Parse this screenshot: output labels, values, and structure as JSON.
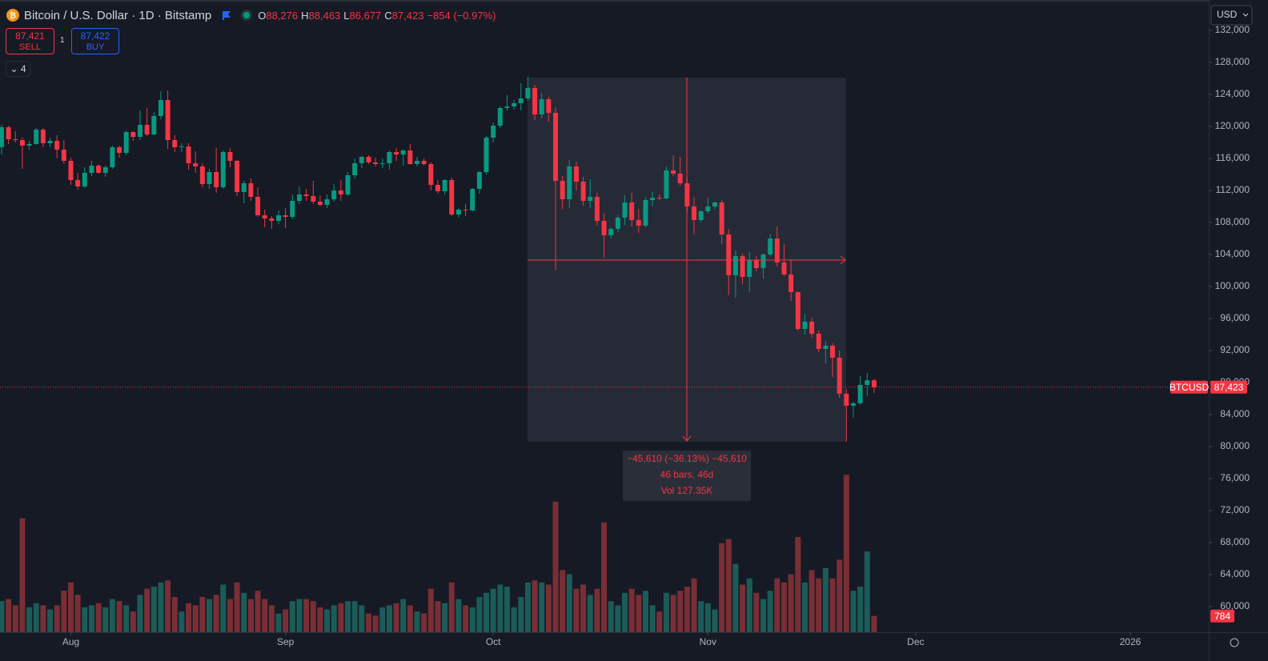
{
  "header": {
    "title": "Bitcoin / U.S. Dollar · 1D · Bitstamp",
    "ohlc": [
      {
        "key": "O",
        "value": "88,276"
      },
      {
        "key": "H",
        "value": "88,463"
      },
      {
        "key": "L",
        "value": "86,677"
      },
      {
        "key": "C",
        "value": "87,423"
      }
    ],
    "change": "−854 (−0.97%)",
    "sell_price": "87,421",
    "sell": "SELL",
    "spread": "1",
    "buy_price": "87,422",
    "buy": "BUY",
    "indicators": "4",
    "currency": "USD"
  },
  "measure": {
    "line1": "−45,610 (−36.13%) −45,610",
    "line2": "46 bars, 46d",
    "line3": "Vol 127.35K"
  },
  "chart_data": {
    "type": "candlestick",
    "xlim": [
      -0.23,
      174.33
    ],
    "xticks": [
      {
        "value": 10,
        "label": "Aug"
      },
      {
        "value": 41,
        "label": "Sep"
      },
      {
        "value": 71,
        "label": "Oct"
      },
      {
        "value": 102,
        "label": "Nov"
      },
      {
        "value": 132,
        "label": "Dec"
      },
      {
        "value": 163,
        "label": "2026"
      }
    ],
    "ylim": [
      56800,
      135800
    ],
    "yticks": [
      {
        "value": 60000,
        "label": "60,000"
      },
      {
        "value": 64000,
        "label": "64,000"
      },
      {
        "value": 68000,
        "label": "68,000"
      },
      {
        "value": 72000,
        "label": "72,000"
      },
      {
        "value": 76000,
        "label": "76,000"
      },
      {
        "value": 80000,
        "label": "80,000"
      },
      {
        "value": 84000,
        "label": "84,000"
      },
      {
        "value": 88000,
        "label": "88,000"
      },
      {
        "value": 92000,
        "label": "92,000"
      },
      {
        "value": 96000,
        "label": "96,000"
      },
      {
        "value": 100000,
        "label": "100,000"
      },
      {
        "value": 104000,
        "label": "104,000"
      },
      {
        "value": 108000,
        "label": "108,000"
      },
      {
        "value": 112000,
        "label": "112,000"
      },
      {
        "value": 116000,
        "label": "116,000"
      },
      {
        "value": 120000,
        "label": "120,000"
      },
      {
        "value": 124000,
        "label": "124,000"
      },
      {
        "value": 128000,
        "label": "128,000"
      },
      {
        "value": 132000,
        "label": "132,000"
      }
    ],
    "vlim": [
      0,
      8000
    ],
    "up_color": "#089981",
    "down_color": "#f23645",
    "volume_up_color": "#1b5c58",
    "volume_down_color": "#7a2e35",
    "symbol": "BTCUSD",
    "last_price_label": "87,423",
    "open": [
      117400,
      119900,
      118400,
      118300,
      117600,
      117800,
      119600,
      117900,
      118200,
      117100,
      115700,
      113300,
      112500,
      114200,
      115100,
      114200,
      114900,
      117400,
      116700,
      119300,
      118700,
      120200,
      119000,
      121300,
      123300,
      118300,
      117400,
      117500,
      115400,
      115000,
      112800,
      114300,
      112400,
      116800,
      115700,
      111800,
      112900,
      111200,
      108900,
      108500,
      108200,
      108900,
      108700,
      110700,
      111500,
      111300,
      110600,
      110200,
      110900,
      112000,
      111500,
      113900,
      115400,
      116200,
      115500,
      115300,
      115400,
      116800,
      116500,
      117000,
      115300,
      115700,
      115300,
      112700,
      111900,
      113300,
      109000,
      109600,
      109500,
      112200,
      114300,
      118600,
      120100,
      122300,
      122500,
      122900,
      123500,
      124800,
      121500,
      123400,
      121700,
      113200,
      110900,
      115000,
      113100,
      110700,
      111200,
      108200,
      106400,
      107200,
      108600,
      110500,
      108300,
      107600,
      110800,
      111100,
      111000,
      114500,
      114100,
      112900,
      110000,
      108300,
      109400,
      110000,
      110500,
      106500,
      101400,
      103800,
      101200,
      103300,
      102300,
      104000,
      106000,
      103000,
      101500,
      99300,
      94700,
      95600,
      94100,
      92200,
      92600,
      91100,
      86600,
      85100,
      85400,
      87700,
      88276
    ],
    "high": [
      120200,
      120100,
      119400,
      118600,
      118200,
      119800,
      119800,
      118600,
      118900,
      118300,
      116100,
      114200,
      114900,
      115700,
      115300,
      115100,
      117600,
      117600,
      119500,
      119400,
      122000,
      122300,
      121800,
      124400,
      124500,
      118900,
      117900,
      117900,
      116900,
      115400,
      114700,
      117300,
      117000,
      117300,
      115800,
      113200,
      113500,
      112400,
      109600,
      108800,
      109500,
      109800,
      111500,
      112500,
      112200,
      113200,
      111400,
      111500,
      112800,
      113300,
      114300,
      116000,
      116300,
      116400,
      116100,
      116000,
      117000,
      117300,
      117100,
      117800,
      116200,
      116000,
      115500,
      113300,
      113400,
      113600,
      109800,
      110300,
      112300,
      114400,
      118800,
      120500,
      122500,
      123900,
      123300,
      125400,
      126200,
      125200,
      124200,
      123700,
      122400,
      113800,
      115800,
      115600,
      113700,
      113400,
      111700,
      109200,
      107400,
      108900,
      111400,
      111700,
      109700,
      111100,
      111800,
      111500,
      115000,
      116400,
      116200,
      113600,
      111200,
      109500,
      111100,
      110600,
      110800,
      107200,
      104500,
      104100,
      104300,
      103800,
      104100,
      106600,
      107500,
      105300,
      103400,
      99400,
      96600,
      96100,
      94500,
      93200,
      92900,
      92000,
      87200,
      85600,
      88800,
      89200,
      88463
    ],
    "low": [
      116500,
      117800,
      118000,
      114700,
      117100,
      117700,
      117400,
      117400,
      116000,
      115300,
      112700,
      112100,
      112300,
      113800,
      114100,
      113700,
      114700,
      116100,
      116400,
      118200,
      118300,
      118800,
      118900,
      120900,
      117200,
      116800,
      116800,
      114600,
      114200,
      112400,
      112200,
      111700,
      112200,
      114900,
      111300,
      110400,
      110700,
      108700,
      107400,
      107200,
      107800,
      107300,
      108400,
      110300,
      110700,
      110300,
      110000,
      109800,
      110600,
      110700,
      111300,
      113500,
      114800,
      115300,
      115000,
      114800,
      114600,
      115700,
      115100,
      115200,
      115000,
      115100,
      112000,
      111600,
      111500,
      108800,
      108600,
      108800,
      109400,
      111600,
      114000,
      118000,
      119800,
      122000,
      122100,
      122000,
      123200,
      120800,
      121000,
      120600,
      102000,
      109700,
      109800,
      112000,
      110100,
      109800,
      107600,
      103600,
      106000,
      106800,
      107700,
      107500,
      106700,
      107400,
      110000,
      110800,
      110900,
      113800,
      112600,
      109300,
      106500,
      108000,
      109100,
      109700,
      105300,
      98900,
      98600,
      100300,
      99300,
      101900,
      101000,
      103800,
      102500,
      101300,
      98200,
      94500,
      94000,
      93600,
      91800,
      90400,
      88700,
      86100,
      80600,
      83600,
      85200,
      86300,
      86677
    ],
    "close": [
      119900,
      118400,
      118300,
      117600,
      117800,
      119600,
      117900,
      118200,
      117100,
      115700,
      113300,
      112500,
      114200,
      115100,
      114200,
      114900,
      117400,
      116700,
      119300,
      118700,
      120200,
      119000,
      121300,
      123300,
      118300,
      117400,
      117500,
      115400,
      115000,
      112800,
      114300,
      112400,
      116800,
      115700,
      111800,
      112900,
      111200,
      108900,
      108500,
      108200,
      108900,
      108700,
      110700,
      111500,
      111300,
      110600,
      110200,
      110900,
      112000,
      111500,
      113900,
      115400,
      116200,
      115500,
      115300,
      115400,
      116800,
      116500,
      117000,
      115300,
      115700,
      115300,
      112700,
      111900,
      113300,
      109000,
      109600,
      109500,
      112200,
      114300,
      118600,
      120100,
      122300,
      122500,
      122900,
      123500,
      124800,
      121500,
      123400,
      121700,
      113200,
      110900,
      115000,
      113100,
      110700,
      111200,
      108200,
      106400,
      107200,
      108600,
      110500,
      108300,
      107600,
      110800,
      111100,
      111000,
      114500,
      114100,
      112900,
      110000,
      108300,
      109400,
      110000,
      110500,
      106500,
      101400,
      103800,
      101200,
      103300,
      102300,
      104000,
      106000,
      103000,
      101500,
      99300,
      94700,
      95600,
      94100,
      92200,
      92600,
      91100,
      86600,
      85100,
      85400,
      87700,
      88276,
      87423
    ],
    "volume": [
      1500,
      1600,
      1300,
      5500,
      1200,
      1400,
      1300,
      1100,
      1300,
      2000,
      2400,
      1800,
      1200,
      1300,
      1400,
      1200,
      1600,
      1500,
      1300,
      1000,
      1800,
      2100,
      2200,
      2400,
      2500,
      1700,
      1000,
      1400,
      1300,
      1700,
      1600,
      1800,
      2300,
      1600,
      2400,
      1900,
      1600,
      2000,
      1600,
      1300,
      900,
      1100,
      1500,
      1600,
      1600,
      1500,
      1200,
      1100,
      1300,
      1400,
      1500,
      1500,
      1300,
      900,
      800,
      1200,
      1300,
      1400,
      1600,
      1300,
      1000,
      900,
      2100,
      1500,
      1400,
      2400,
      1600,
      1300,
      1200,
      1700,
      1900,
      2100,
      2300,
      2200,
      1200,
      1700,
      2400,
      2500,
      2400,
      2300,
      6300,
      3000,
      2800,
      2100,
      2300,
      1800,
      2100,
      5300,
      1500,
      1300,
      1900,
      2100,
      1800,
      2000,
      1300,
      1000,
      1900,
      1800,
      2000,
      2200,
      2600,
      1500,
      1400,
      1100,
      4300,
      4500,
      3300,
      2300,
      2600,
      1900,
      1600,
      2000,
      2600,
      2400,
      2800,
      4600,
      2400,
      3000,
      2600,
      3100,
      2600,
      3500,
      7600,
      2000,
      2200,
      3900,
      784
    ]
  }
}
